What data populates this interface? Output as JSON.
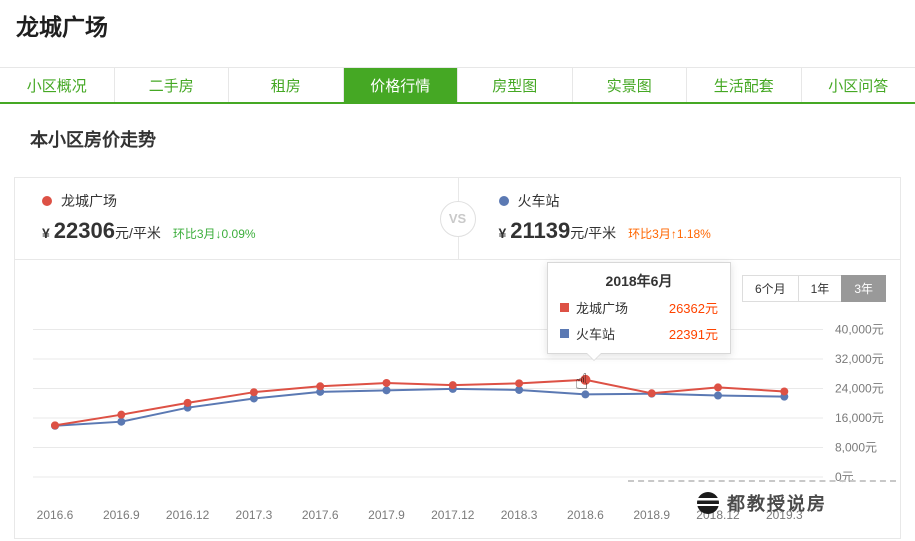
{
  "page": {
    "title": "龙城广场"
  },
  "tabs": {
    "items": [
      {
        "label": "小区概况",
        "active": false
      },
      {
        "label": "二手房",
        "active": false
      },
      {
        "label": "租房",
        "active": false
      },
      {
        "label": "价格行情",
        "active": true
      },
      {
        "label": "房型图",
        "active": false
      },
      {
        "label": "实景图",
        "active": false
      },
      {
        "label": "生活配套",
        "active": false
      },
      {
        "label": "小区问答",
        "active": false
      }
    ]
  },
  "section_title": "本小区房价走势",
  "compare": {
    "vs_label": "VS",
    "left": {
      "name": "龙城广场",
      "currency": "¥",
      "price": "22306",
      "unit": "元/平米",
      "change": "环比3月↓0.09%",
      "direction": "down"
    },
    "right": {
      "name": "火车站",
      "currency": "¥",
      "price": "21139",
      "unit": "元/平米",
      "change": "环比3月↑1.18%",
      "direction": "up"
    }
  },
  "range_buttons": [
    {
      "label": "6个月",
      "active": false
    },
    {
      "label": "1年",
      "active": false
    },
    {
      "label": "3年",
      "active": true
    }
  ],
  "tooltip": {
    "title": "2018年6月",
    "rows": [
      {
        "name": "龙城广场",
        "value": "26362元",
        "color": "#dd5145"
      },
      {
        "name": "火车站",
        "value": "22391元",
        "color": "#5b79b3"
      }
    ]
  },
  "chart_data": {
    "type": "line",
    "x": [
      "2016.6",
      "2016.9",
      "2016.12",
      "2017.3",
      "2017.6",
      "2017.9",
      "2017.12",
      "2018.3",
      "2018.6",
      "2018.9",
      "2018.12",
      "2019.3"
    ],
    "series": [
      {
        "name": "龙城广场",
        "color": "#dd5145",
        "values": [
          14000,
          16900,
          20100,
          23000,
          24600,
          25500,
          24900,
          25400,
          26362,
          22700,
          24300,
          23200
        ]
      },
      {
        "name": "火车站",
        "color": "#5b79b3",
        "values": [
          13900,
          15000,
          18800,
          21300,
          23100,
          23500,
          23900,
          23600,
          22391,
          22600,
          22100,
          21800
        ]
      }
    ],
    "ylim": [
      0,
      40000
    ],
    "ytick_step": 8000,
    "ylabels": [
      "0元",
      "8,000元",
      "16,000元",
      "24,000元",
      "32,000元",
      "40,000元"
    ],
    "grid": true,
    "legend_position": "none",
    "highlight_x": "2018.6"
  },
  "colors": {
    "brand_green": "#45a824",
    "down_green": "#3cae3c",
    "up_orange": "#ff6600",
    "series_red": "#dd5145",
    "series_blue": "#5b79b3",
    "tooltip_value": "#ff4400",
    "grid_line": "#e9e9e9",
    "axis_text": "#7a7a7a"
  },
  "watermark": {
    "text": "都教授说房"
  }
}
